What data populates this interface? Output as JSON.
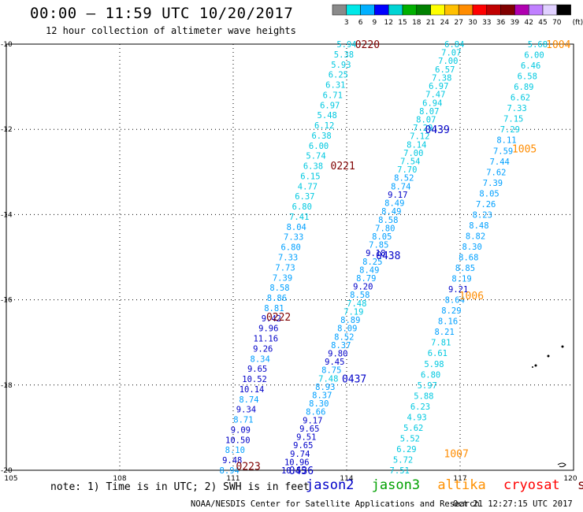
{
  "header": {
    "title": "00:00 – 11:59 UTC 10/20/2017",
    "subtitle": "12 hour collection of altimeter wave heights"
  },
  "colorbar": {
    "unit": "(ft)",
    "labels": [
      "3",
      "6",
      "9",
      "12",
      "15",
      "18",
      "21",
      "24",
      "27",
      "30",
      "33",
      "36",
      "39",
      "42",
      "45",
      "70"
    ],
    "colors": [
      "#8a8a8a",
      "#00e8e8",
      "#00b0ff",
      "#0000ff",
      "#00d4d4",
      "#00b000",
      "#008000",
      "#ffff00",
      "#ffc000",
      "#ff8c00",
      "#ff0000",
      "#c00000",
      "#800000",
      "#b000b0",
      "#c080ff",
      "#e0d0ff",
      "#000000"
    ]
  },
  "axes": {
    "lon_labels": [
      "105",
      "108",
      "111",
      "114",
      "117",
      "120"
    ],
    "lat_labels": [
      "-10",
      "-12",
      "-14",
      "-16",
      "-18",
      "-20"
    ]
  },
  "tracks": [
    {
      "name": "A",
      "start_lon": 114.0,
      "start_lat": -10.0,
      "end_lon": 110.9,
      "end_lat": -20.0,
      "values": [
        "5.94",
        "5.38",
        "5.93",
        "6.25",
        "6.31",
        "6.71",
        "6.97",
        "5.48",
        "6.12",
        "6.38",
        "6.00",
        "5.74",
        "6.38",
        "6.15",
        "4.77",
        "6.37",
        "6.80",
        "7.41",
        "8.04",
        "7.33",
        "6.80",
        "7.33",
        "7.73",
        "7.39",
        "8.58",
        "8.86",
        "8.81",
        "9.42",
        "9.96",
        "11.16",
        "9.26",
        "8.34",
        "9.65",
        "10.52",
        "10.14",
        "8.74",
        "9.34",
        "8.71",
        "9.09",
        "10.50",
        "8.10",
        "9.48",
        "8.94"
      ],
      "colors": [
        "#00c8e0",
        "#00c8e0",
        "#00c8e0",
        "#00c8e0",
        "#00c8e0",
        "#00c8e0",
        "#00c8e0",
        "#00c8e0",
        "#00c8e0",
        "#00c8e0",
        "#00c8e0",
        "#00c8e0",
        "#00c8e0",
        "#00c8e0",
        "#00c8e0",
        "#00c8e0",
        "#00c8e0",
        "#00c8e0",
        "#00a0ff",
        "#00a0ff",
        "#00a0ff",
        "#00a0ff",
        "#00a0ff",
        "#00a0ff",
        "#00a0ff",
        "#00a0ff",
        "#00a0ff",
        "#0000c8",
        "#0000c8",
        "#0000c8",
        "#0000c8",
        "#00a0ff",
        "#0000c8",
        "#0000c8",
        "#0000c8",
        "#00a0ff",
        "#0000c8",
        "#00a0ff",
        "#0000c8",
        "#0000c8",
        "#00a0ff",
        "#0000c8",
        "#00a0ff"
      ]
    },
    {
      "name": "B",
      "start_lon": 116.85,
      "start_lat": -10.0,
      "end_lon": 112.6,
      "end_lat": -20.0,
      "values": [
        "6.84",
        "7.07",
        "7.00",
        "6.57",
        "7.38",
        "6.97",
        "7.47",
        "6.94",
        "8.07",
        "8.07",
        "7.29",
        "7.12",
        "8.14",
        "7.00",
        "7.54",
        "7.70",
        "8.52",
        "8.74",
        "9.17",
        "8.49",
        "8.49",
        "8.58",
        "7.80",
        "8.05",
        "7.85",
        "9.18",
        "8.25",
        "8.49",
        "8.79",
        "9.20",
        "8.58",
        "7.48",
        "7.19",
        "8.89",
        "8.09",
        "8.52",
        "8.37",
        "9.80",
        "9.45",
        "8.75",
        "7.48",
        "8.93",
        "8.37",
        "8.30",
        "8.66",
        "9.17",
        "9.65",
        "9.51",
        "9.65",
        "9.74",
        "10.96",
        "10.55"
      ],
      "colors": [
        "#00c8e0",
        "#00c8e0",
        "#00c8e0",
        "#00c8e0",
        "#00c8e0",
        "#00c8e0",
        "#00c8e0",
        "#00c8e0",
        "#00c8e0",
        "#00c8e0",
        "#00c8e0",
        "#00c8e0",
        "#00c8e0",
        "#00c8e0",
        "#00c8e0",
        "#00c8e0",
        "#00a0ff",
        "#00a0ff",
        "#0000c8",
        "#00a0ff",
        "#00a0ff",
        "#00a0ff",
        "#00a0ff",
        "#00a0ff",
        "#00a0ff",
        "#0000c8",
        "#00a0ff",
        "#00a0ff",
        "#00a0ff",
        "#0000c8",
        "#00a0ff",
        "#00c8e0",
        "#00c8e0",
        "#00a0ff",
        "#00a0ff",
        "#00a0ff",
        "#00a0ff",
        "#0000c8",
        "#0000c8",
        "#00a0ff",
        "#00c8e0",
        "#00a0ff",
        "#00a0ff",
        "#00a0ff",
        "#00a0ff",
        "#0000c8",
        "#0000c8",
        "#0000c8",
        "#0000c8",
        "#0000c8",
        "#0000c8",
        "#0000c8"
      ]
    },
    {
      "name": "C",
      "start_lon": 119.05,
      "start_lat": -10.0,
      "end_lon": 115.4,
      "end_lat": -20.0,
      "values": [
        "5.68",
        "6.00",
        "6.46",
        "6.58",
        "6.89",
        "6.62",
        "7.33",
        "7.15",
        "7.29",
        "8.11",
        "7.59",
        "7.44",
        "7.62",
        "7.39",
        "8.05",
        "7.26",
        "8.23",
        "8.48",
        "8.82",
        "8.30",
        "8.68",
        "8.85",
        "8.19",
        "9.21",
        "8.64",
        "8.29",
        "8.16",
        "8.21",
        "7.81",
        "6.61",
        "5.98",
        "6.80",
        "5.97",
        "5.88",
        "6.23",
        "4.93",
        "5.62",
        "5.52",
        "6.29",
        "5.72",
        "7.51"
      ],
      "colors": [
        "#00c8e0",
        "#00c8e0",
        "#00c8e0",
        "#00c8e0",
        "#00c8e0",
        "#00c8e0",
        "#00c8e0",
        "#00c8e0",
        "#00c8e0",
        "#00a0ff",
        "#00a0ff",
        "#00a0ff",
        "#00a0ff",
        "#00a0ff",
        "#00a0ff",
        "#00a0ff",
        "#00a0ff",
        "#00a0ff",
        "#00a0ff",
        "#00a0ff",
        "#00a0ff",
        "#00a0ff",
        "#00a0ff",
        "#0000c8",
        "#00a0ff",
        "#00a0ff",
        "#00a0ff",
        "#00a0ff",
        "#00c8e0",
        "#00c8e0",
        "#00c8e0",
        "#00c8e0",
        "#00c8e0",
        "#00c8e0",
        "#00c8e0",
        "#00c8e0",
        "#00c8e0",
        "#00c8e0",
        "#00c8e0",
        "#00c8e0",
        "#00c8e0"
      ]
    }
  ],
  "time_labels": [
    {
      "text": "0220",
      "lon": 114.55,
      "lat": -10.0,
      "color": "#800000"
    },
    {
      "text": "1004",
      "lon": 119.6,
      "lat": -10.0,
      "color": "#ff8c00"
    },
    {
      "text": "0439",
      "lon": 116.4,
      "lat": -12.0,
      "color": "#0000c8"
    },
    {
      "text": "1005",
      "lon": 118.7,
      "lat": -12.45,
      "color": "#ff8c00"
    },
    {
      "text": "0221",
      "lon": 113.9,
      "lat": -12.85,
      "color": "#800000"
    },
    {
      "text": "0438",
      "lon": 115.1,
      "lat": -14.95,
      "color": "#0000c8"
    },
    {
      "text": "1006",
      "lon": 117.3,
      "lat": -15.9,
      "color": "#ff8c00"
    },
    {
      "text": "0222",
      "lon": 112.2,
      "lat": -16.4,
      "color": "#800000"
    },
    {
      "text": "0437",
      "lon": 114.2,
      "lat": -17.85,
      "color": "#0000c8"
    },
    {
      "text": "1007",
      "lon": 116.9,
      "lat": -19.6,
      "color": "#ff8c00"
    },
    {
      "text": "0223",
      "lon": 111.4,
      "lat": -19.9,
      "color": "#800000"
    },
    {
      "text": "0436",
      "lon": 112.8,
      "lat": -20.0,
      "color": "#0000c8"
    }
  ],
  "legend": {
    "note": "note: 1) Time is in UTC; 2) SWH is in feet",
    "satellites": [
      {
        "name": "jason2",
        "color": "#0000c8"
      },
      {
        "name": "jason3",
        "color": "#00a000"
      },
      {
        "name": "altika",
        "color": "#ff9000"
      },
      {
        "name": "cryosat",
        "color": "#ff0000"
      },
      {
        "name": "s3a",
        "color": "#800000"
      }
    ]
  },
  "footer": {
    "credit": "NOAA/NESDIS Center for Satellite Applications and Research",
    "timestamp": "Oct 21 12:27:15 UTC 2017"
  }
}
